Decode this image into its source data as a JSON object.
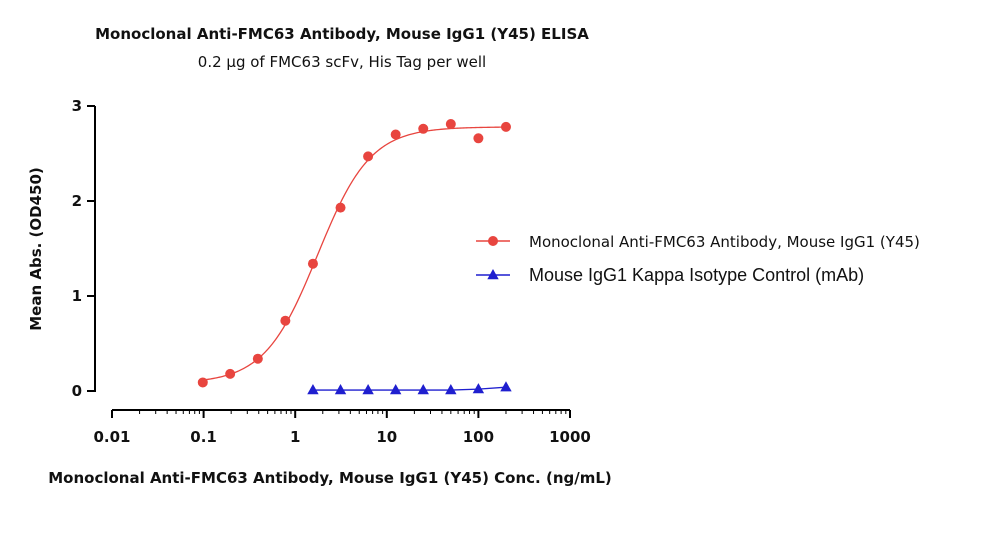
{
  "chart_data": {
    "type": "scatter",
    "title": "Monoclonal Anti-FMC63 Antibody, Mouse IgG1 (Y45) ELISA",
    "subtitle": "0.2 µg of FMC63 scFv, His Tag per well",
    "xlabel": "Monoclonal Anti-FMC63 Antibody, Mouse IgG1 (Y45) Conc. (ng/mL)",
    "ylabel": "Mean Abs. (OD450)",
    "x_scale": "log",
    "xlim": [
      0.01,
      1000
    ],
    "ylim": [
      0,
      3
    ],
    "x_ticks": [
      0.01,
      0.1,
      1,
      10,
      100,
      1000
    ],
    "x_tick_labels": [
      "0.01",
      "0.1",
      "1",
      "10",
      "100",
      "1000"
    ],
    "y_ticks": [
      0,
      1,
      2,
      3
    ],
    "y_tick_labels": [
      "0",
      "1",
      "2",
      "3"
    ],
    "grid": false,
    "legend": "right",
    "series": [
      {
        "name": "Monoclonal Anti-FMC63 Antibody, Mouse IgG1 (Y45)",
        "color": "#e8453f",
        "marker": "circle",
        "fit": "4PL",
        "x": [
          0.098,
          0.195,
          0.391,
          0.781,
          1.5625,
          3.125,
          6.25,
          12.5,
          25,
          50,
          100,
          200
        ],
        "y": [
          0.09,
          0.18,
          0.34,
          0.74,
          1.34,
          1.93,
          2.47,
          2.7,
          2.76,
          2.81,
          2.66,
          2.78
        ]
      },
      {
        "name": "Mouse IgG1 Kappa Isotype Control (mAb)",
        "color": "#1f1fcf",
        "marker": "triangle",
        "fit": "line",
        "x": [
          1.5625,
          3.125,
          6.25,
          12.5,
          25,
          50,
          100,
          200
        ],
        "y": [
          0.01,
          0.01,
          0.01,
          0.01,
          0.01,
          0.01,
          0.02,
          0.04
        ]
      }
    ]
  }
}
